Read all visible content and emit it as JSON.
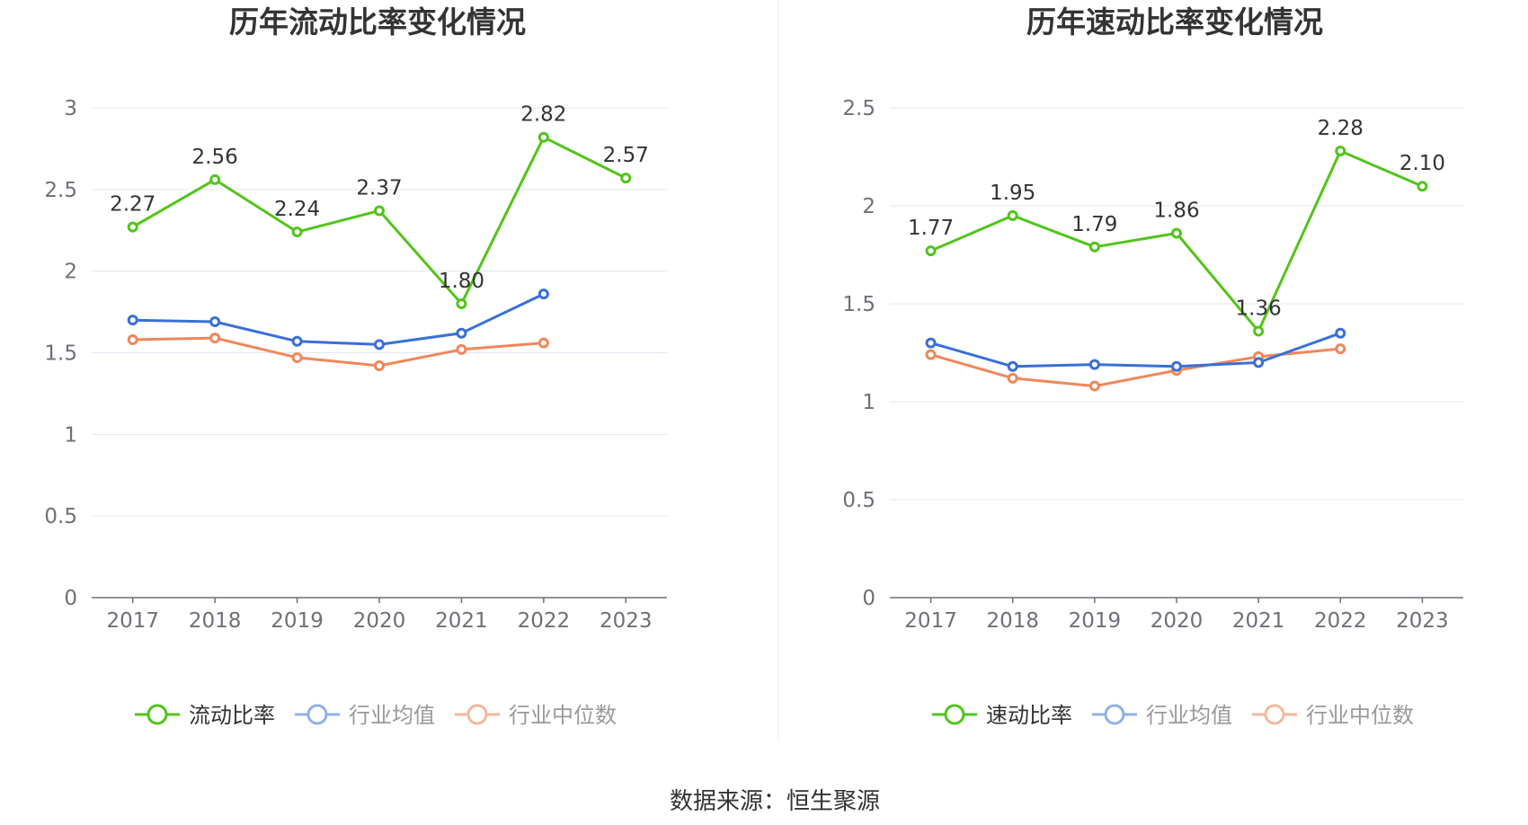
{
  "source_label": "数据来源：恒生聚源",
  "chart_data": [
    {
      "type": "line",
      "title": "历年流动比率变化情况",
      "categories": [
        "2017",
        "2018",
        "2019",
        "2020",
        "2021",
        "2022",
        "2023"
      ],
      "ylim": [
        0,
        3
      ],
      "yticks": [
        0,
        0.5,
        1,
        1.5,
        2,
        2.5,
        3
      ],
      "ytick_labels": [
        "0",
        "0.5",
        "1",
        "1.5",
        "2",
        "2.5",
        "3"
      ],
      "grid": true,
      "legend_position": "bottom",
      "series": [
        {
          "name": "流动比率",
          "color": "#52c41a",
          "values": [
            2.27,
            2.56,
            2.24,
            2.37,
            1.8,
            2.82,
            2.57
          ],
          "labels": [
            "2.27",
            "2.56",
            "2.24",
            "2.37",
            "1.80",
            "2.82",
            "2.57"
          ],
          "legend_active": true
        },
        {
          "name": "行业均值",
          "color": "#3a6fd8",
          "legend_color": "#8fb0ea",
          "values": [
            1.7,
            1.69,
            1.57,
            1.55,
            1.62,
            1.86,
            null
          ],
          "legend_active": false
        },
        {
          "name": "行业中位数",
          "color": "#f0875a",
          "legend_color": "#f5b79b",
          "values": [
            1.58,
            1.59,
            1.47,
            1.42,
            1.52,
            1.56,
            null
          ],
          "legend_active": false
        }
      ]
    },
    {
      "type": "line",
      "title": "历年速动比率变化情况",
      "categories": [
        "2017",
        "2018",
        "2019",
        "2020",
        "2021",
        "2022",
        "2023"
      ],
      "ylim": [
        0,
        2.5
      ],
      "yticks": [
        0,
        0.5,
        1,
        1.5,
        2,
        2.5
      ],
      "ytick_labels": [
        "0",
        "0.5",
        "1",
        "1.5",
        "2",
        "2.5"
      ],
      "grid": true,
      "legend_position": "bottom",
      "series": [
        {
          "name": "速动比率",
          "color": "#52c41a",
          "values": [
            1.77,
            1.95,
            1.79,
            1.86,
            1.36,
            2.28,
            2.1
          ],
          "labels": [
            "1.77",
            "1.95",
            "1.79",
            "1.86",
            "1.36",
            "2.28",
            "2.10"
          ],
          "legend_active": true
        },
        {
          "name": "行业均值",
          "color": "#3a6fd8",
          "legend_color": "#8fb0ea",
          "values": [
            1.3,
            1.18,
            1.19,
            1.18,
            1.2,
            1.35,
            null
          ],
          "legend_active": false
        },
        {
          "name": "行业中位数",
          "color": "#f0875a",
          "legend_color": "#f5b79b",
          "values": [
            1.24,
            1.12,
            1.08,
            1.16,
            1.23,
            1.27,
            null
          ],
          "legend_active": false
        }
      ]
    }
  ]
}
